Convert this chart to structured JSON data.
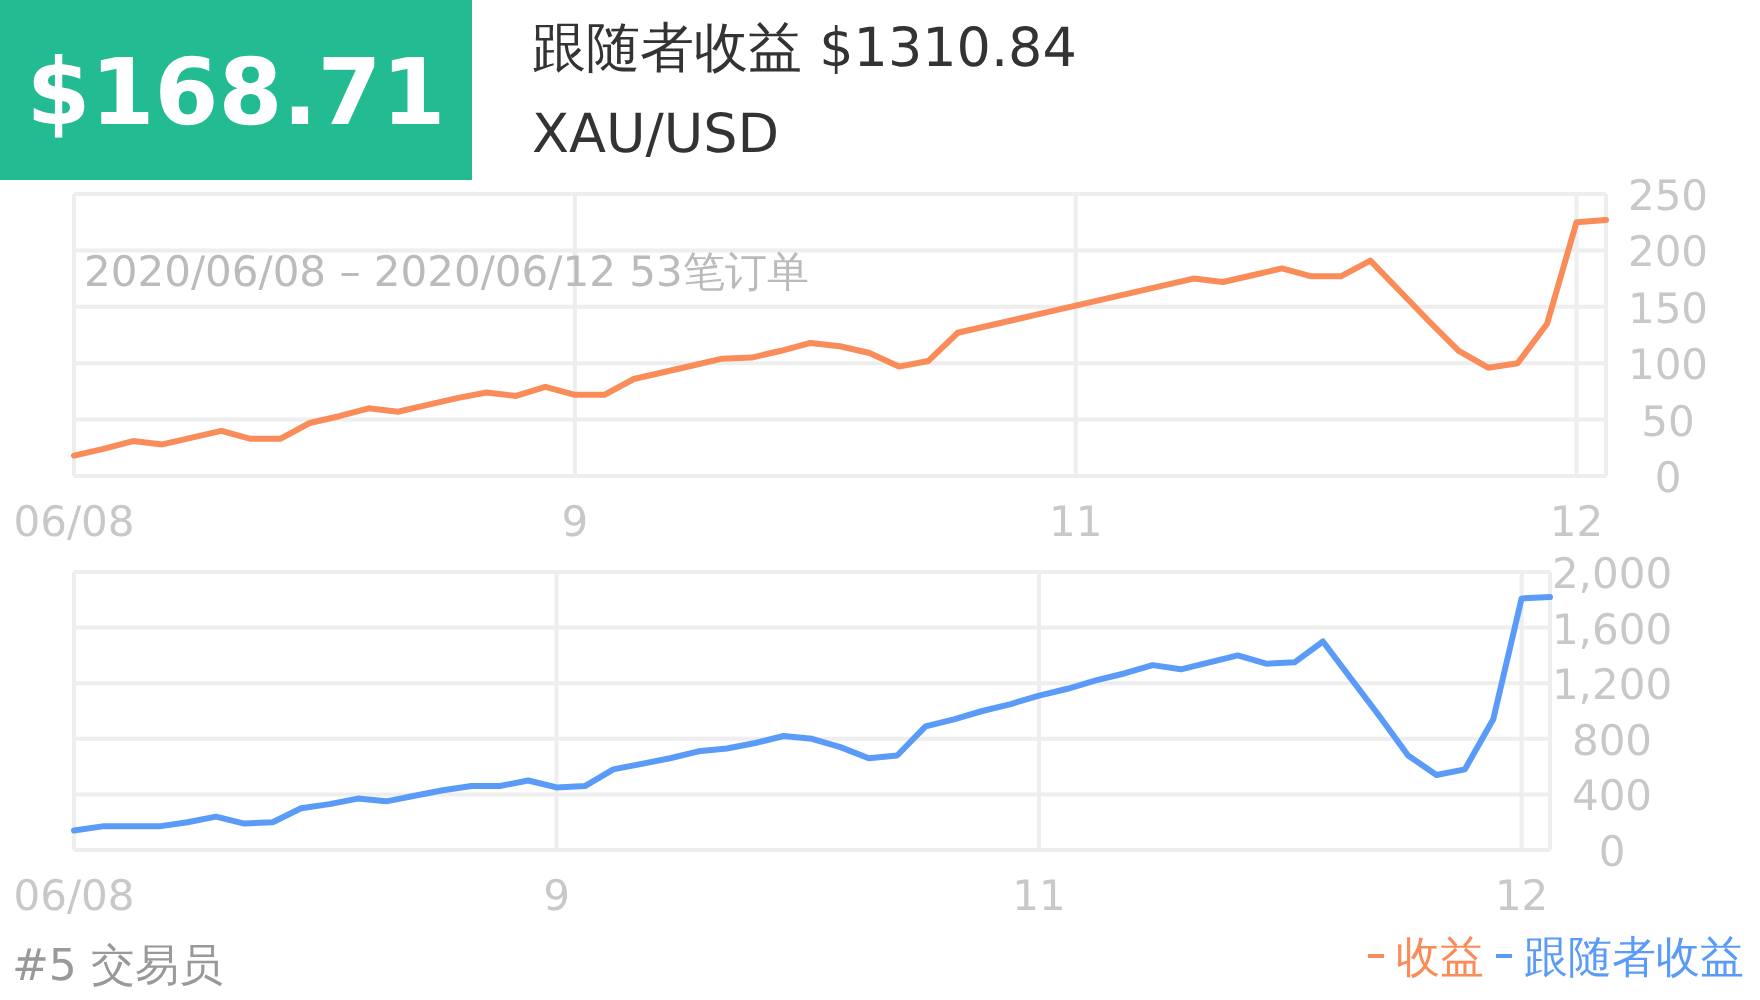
{
  "chart_data": [
    {
      "type": "line",
      "annotations": [
        "$168.71",
        "跟随者收益 $1310.84",
        "XAU/USD",
        "2020/06/08 – 2020/06/12 53笔订单"
      ],
      "categories": [
        "06/08",
        null,
        null,
        null,
        null,
        null,
        null,
        null,
        null,
        null,
        null,
        null,
        null,
        null,
        null,
        null,
        null,
        "9",
        null,
        null,
        null,
        null,
        null,
        null,
        null,
        null,
        null,
        null,
        null,
        null,
        null,
        null,
        null,
        null,
        "11",
        null,
        null,
        null,
        null,
        null,
        null,
        null,
        null,
        null,
        null,
        null,
        null,
        null,
        null,
        null,
        null,
        "12",
        null
      ],
      "series": [
        {
          "name": "收益",
          "color": "#fa8c5a",
          "values": [
            18,
            24,
            31,
            28,
            34,
            40,
            33,
            33,
            47,
            53,
            60,
            57,
            63,
            69,
            74,
            71,
            79,
            72,
            72,
            86,
            92,
            98,
            104,
            105,
            111,
            118,
            115,
            109,
            97,
            102,
            127,
            133,
            139,
            145,
            151,
            157,
            163,
            169,
            175,
            172,
            178,
            184,
            177,
            177,
            191,
            164,
            137,
            111,
            96,
            100,
            135,
            225,
            227
          ]
        }
      ],
      "ylim": [
        0,
        250
      ],
      "yticks": [
        0,
        50,
        100,
        150,
        200,
        250
      ],
      "grid": true,
      "legend": "bottom right",
      "marker": "none",
      "line_style": "solid"
    },
    {
      "type": "line",
      "annotations": [
        "#5 交易员"
      ],
      "categories": [
        "06/08",
        null,
        null,
        null,
        null,
        null,
        null,
        null,
        null,
        null,
        null,
        null,
        null,
        null,
        null,
        null,
        null,
        "9",
        null,
        null,
        null,
        null,
        null,
        null,
        null,
        null,
        null,
        null,
        null,
        null,
        null,
        null,
        null,
        null,
        "11",
        null,
        null,
        null,
        null,
        null,
        null,
        null,
        null,
        null,
        null,
        null,
        null,
        null,
        null,
        null,
        null,
        "12",
        null
      ],
      "series": [
        {
          "name": "跟随者收益",
          "color": "#5b9bf8",
          "values": [
            140,
            170,
            170,
            170,
            200,
            240,
            190,
            200,
            300,
            330,
            370,
            350,
            390,
            430,
            460,
            460,
            500,
            450,
            460,
            580,
            620,
            660,
            710,
            730,
            770,
            820,
            800,
            740,
            660,
            680,
            890,
            940,
            1000,
            1050,
            1110,
            1160,
            1220,
            1270,
            1330,
            1300,
            1350,
            1400,
            1340,
            1350,
            1500,
            1230,
            960,
            680,
            540,
            580,
            940,
            1810,
            1820
          ]
        }
      ],
      "ylim": [
        0,
        2000
      ],
      "yticks": [
        0,
        400,
        800,
        {
          "value": 1200,
          "label": "1,200"
        },
        {
          "value": 1600,
          "label": "1,600"
        },
        {
          "value": 2000,
          "label": "2,000"
        }
      ],
      "grid": true,
      "legend": "bottom right",
      "marker": "none",
      "line_style": "solid"
    }
  ]
}
